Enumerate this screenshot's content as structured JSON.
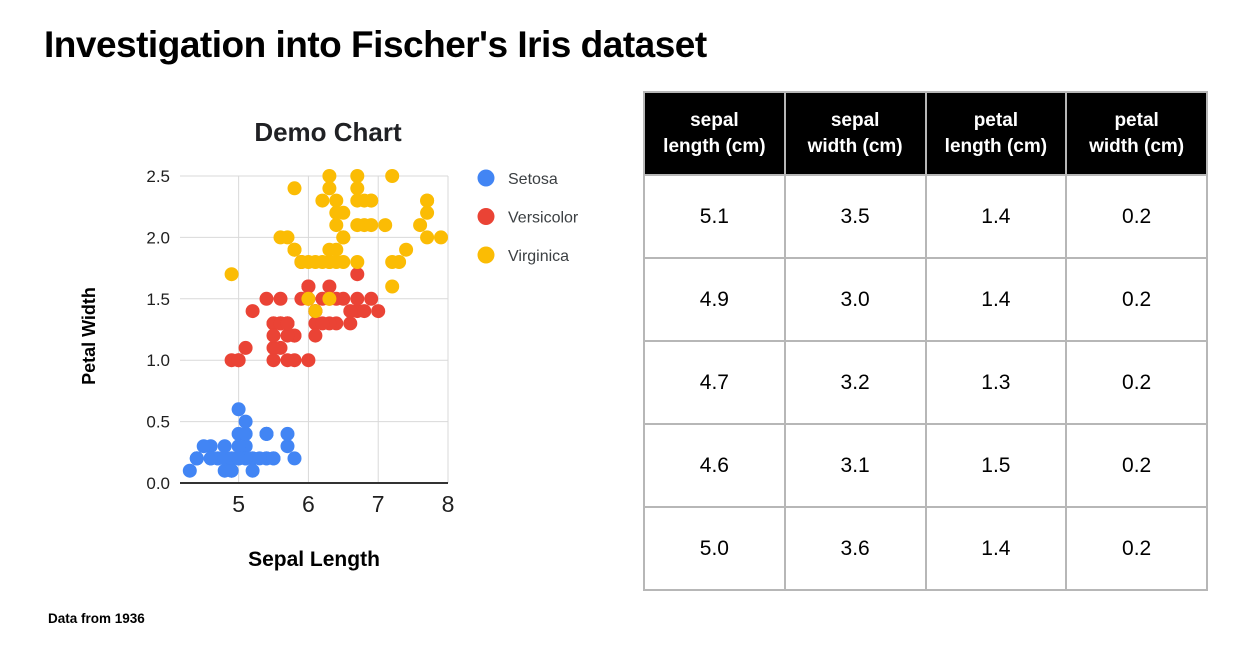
{
  "slide": {
    "title": "Investigation into Fischer's Iris dataset",
    "footer": "Data from 1936"
  },
  "chart_data": {
    "type": "scatter",
    "title": "Demo Chart",
    "xlabel": "Sepal Length",
    "ylabel": "Petal Width",
    "xlim": [
      4.16,
      8.0
    ],
    "ylim": [
      0.0,
      2.5
    ],
    "x_ticks": [
      5,
      6,
      7,
      8
    ],
    "y_ticks": [
      0.0,
      0.5,
      1.0,
      1.5,
      2.0,
      2.5
    ],
    "grid": true,
    "legend_position": "right",
    "point_radius": 7,
    "series": [
      {
        "name": "Setosa",
        "color": "#4285F4",
        "points": [
          [
            5.1,
            0.2
          ],
          [
            4.9,
            0.2
          ],
          [
            4.7,
            0.2
          ],
          [
            4.6,
            0.2
          ],
          [
            5.0,
            0.2
          ],
          [
            5.4,
            0.4
          ],
          [
            4.6,
            0.3
          ],
          [
            5.0,
            0.2
          ],
          [
            4.4,
            0.2
          ],
          [
            4.9,
            0.1
          ],
          [
            5.4,
            0.2
          ],
          [
            4.8,
            0.2
          ],
          [
            4.8,
            0.1
          ],
          [
            4.3,
            0.1
          ],
          [
            5.8,
            0.2
          ],
          [
            5.7,
            0.4
          ],
          [
            5.4,
            0.4
          ],
          [
            5.1,
            0.3
          ],
          [
            5.7,
            0.3
          ],
          [
            5.1,
            0.3
          ],
          [
            5.4,
            0.2
          ],
          [
            5.1,
            0.4
          ],
          [
            4.6,
            0.2
          ],
          [
            5.1,
            0.5
          ],
          [
            4.8,
            0.2
          ],
          [
            5.0,
            0.2
          ],
          [
            5.0,
            0.4
          ],
          [
            5.2,
            0.2
          ],
          [
            5.2,
            0.2
          ],
          [
            4.7,
            0.2
          ],
          [
            4.8,
            0.2
          ],
          [
            5.4,
            0.4
          ],
          [
            5.2,
            0.1
          ],
          [
            5.5,
            0.2
          ],
          [
            4.9,
            0.2
          ],
          [
            5.0,
            0.2
          ],
          [
            5.5,
            0.2
          ],
          [
            4.9,
            0.1
          ],
          [
            4.4,
            0.2
          ],
          [
            5.1,
            0.2
          ],
          [
            5.0,
            0.3
          ],
          [
            4.5,
            0.3
          ],
          [
            4.4,
            0.2
          ],
          [
            5.0,
            0.6
          ],
          [
            5.1,
            0.4
          ],
          [
            4.8,
            0.3
          ],
          [
            5.1,
            0.2
          ],
          [
            4.6,
            0.2
          ],
          [
            5.3,
            0.2
          ],
          [
            5.0,
            0.2
          ]
        ]
      },
      {
        "name": "Versicolor",
        "color": "#EA4335",
        "points": [
          [
            7.0,
            1.4
          ],
          [
            6.4,
            1.5
          ],
          [
            6.9,
            1.5
          ],
          [
            5.5,
            1.3
          ],
          [
            6.5,
            1.5
          ],
          [
            5.7,
            1.3
          ],
          [
            6.3,
            1.6
          ],
          [
            4.9,
            1.0
          ],
          [
            6.6,
            1.3
          ],
          [
            5.2,
            1.4
          ],
          [
            5.0,
            1.0
          ],
          [
            5.9,
            1.5
          ],
          [
            6.0,
            1.0
          ],
          [
            6.1,
            1.4
          ],
          [
            5.6,
            1.3
          ],
          [
            6.7,
            1.4
          ],
          [
            5.6,
            1.5
          ],
          [
            5.8,
            1.0
          ],
          [
            6.2,
            1.5
          ],
          [
            5.6,
            1.1
          ],
          [
            5.9,
            1.8
          ],
          [
            6.1,
            1.3
          ],
          [
            6.3,
            1.5
          ],
          [
            6.1,
            1.2
          ],
          [
            6.4,
            1.3
          ],
          [
            6.6,
            1.4
          ],
          [
            6.8,
            1.4
          ],
          [
            6.7,
            1.7
          ],
          [
            6.0,
            1.5
          ],
          [
            5.7,
            1.0
          ],
          [
            5.5,
            1.1
          ],
          [
            5.5,
            1.0
          ],
          [
            5.8,
            1.2
          ],
          [
            6.0,
            1.6
          ],
          [
            5.4,
            1.5
          ],
          [
            6.0,
            1.6
          ],
          [
            6.7,
            1.5
          ],
          [
            6.3,
            1.3
          ],
          [
            5.6,
            1.3
          ],
          [
            5.5,
            1.3
          ],
          [
            5.5,
            1.2
          ],
          [
            6.1,
            1.4
          ],
          [
            5.8,
            1.2
          ],
          [
            5.0,
            1.0
          ],
          [
            5.6,
            1.3
          ],
          [
            5.7,
            1.2
          ],
          [
            5.7,
            1.3
          ],
          [
            6.2,
            1.3
          ],
          [
            5.1,
            1.1
          ],
          [
            5.7,
            1.3
          ]
        ]
      },
      {
        "name": "Virginica",
        "color": "#FBBC04",
        "points": [
          [
            6.3,
            2.5
          ],
          [
            5.8,
            1.9
          ],
          [
            7.1,
            2.1
          ],
          [
            6.3,
            1.8
          ],
          [
            6.5,
            2.2
          ],
          [
            7.6,
            2.1
          ],
          [
            4.9,
            1.7
          ],
          [
            7.3,
            1.8
          ],
          [
            6.7,
            1.8
          ],
          [
            7.2,
            2.5
          ],
          [
            6.5,
            2.0
          ],
          [
            6.4,
            1.9
          ],
          [
            6.8,
            2.1
          ],
          [
            5.7,
            2.0
          ],
          [
            5.8,
            2.4
          ],
          [
            6.4,
            2.3
          ],
          [
            6.5,
            1.8
          ],
          [
            7.7,
            2.2
          ],
          [
            7.7,
            2.3
          ],
          [
            6.0,
            1.5
          ],
          [
            6.9,
            2.3
          ],
          [
            5.6,
            2.0
          ],
          [
            7.7,
            2.0
          ],
          [
            6.3,
            1.8
          ],
          [
            6.7,
            2.1
          ],
          [
            7.2,
            1.8
          ],
          [
            6.2,
            1.8
          ],
          [
            6.1,
            1.8
          ],
          [
            6.4,
            2.1
          ],
          [
            7.2,
            1.6
          ],
          [
            7.4,
            1.9
          ],
          [
            7.9,
            2.0
          ],
          [
            6.4,
            2.2
          ],
          [
            6.3,
            1.5
          ],
          [
            6.1,
            1.4
          ],
          [
            7.7,
            2.3
          ],
          [
            6.3,
            2.4
          ],
          [
            6.4,
            1.8
          ],
          [
            6.0,
            1.8
          ],
          [
            6.9,
            2.1
          ],
          [
            6.7,
            2.4
          ],
          [
            6.9,
            2.3
          ],
          [
            5.8,
            1.9
          ],
          [
            6.8,
            2.3
          ],
          [
            6.7,
            2.5
          ],
          [
            6.7,
            2.3
          ],
          [
            6.3,
            1.9
          ],
          [
            6.5,
            2.0
          ],
          [
            6.2,
            2.3
          ],
          [
            5.9,
            1.8
          ]
        ]
      }
    ]
  },
  "table": {
    "headers": [
      {
        "label": "sepal length (cm)",
        "lines": [
          "sepal",
          "length (cm)"
        ]
      },
      {
        "label": "sepal width (cm)",
        "lines": [
          "sepal",
          "width (cm)"
        ]
      },
      {
        "label": "petal length (cm)",
        "lines": [
          "petal",
          "length (cm)"
        ]
      },
      {
        "label": "petal width (cm)",
        "lines": [
          "petal",
          "width (cm)"
        ]
      }
    ],
    "rows": [
      [
        "5.1",
        "3.5",
        "1.4",
        "0.2"
      ],
      [
        "4.9",
        "3.0",
        "1.4",
        "0.2"
      ],
      [
        "4.7",
        "3.2",
        "1.3",
        "0.2"
      ],
      [
        "4.6",
        "3.1",
        "1.5",
        "0.2"
      ],
      [
        "5.0",
        "3.6",
        "1.4",
        "0.2"
      ]
    ]
  },
  "colors": {
    "setosa": "#4285F4",
    "versicolor": "#EA4335",
    "virginica": "#FBBC04",
    "gridline": "#d9d9d9",
    "axis_line": "#333333",
    "table_border": "#b7b7b7",
    "header_bg": "#000000",
    "header_text": "#ffffff"
  }
}
